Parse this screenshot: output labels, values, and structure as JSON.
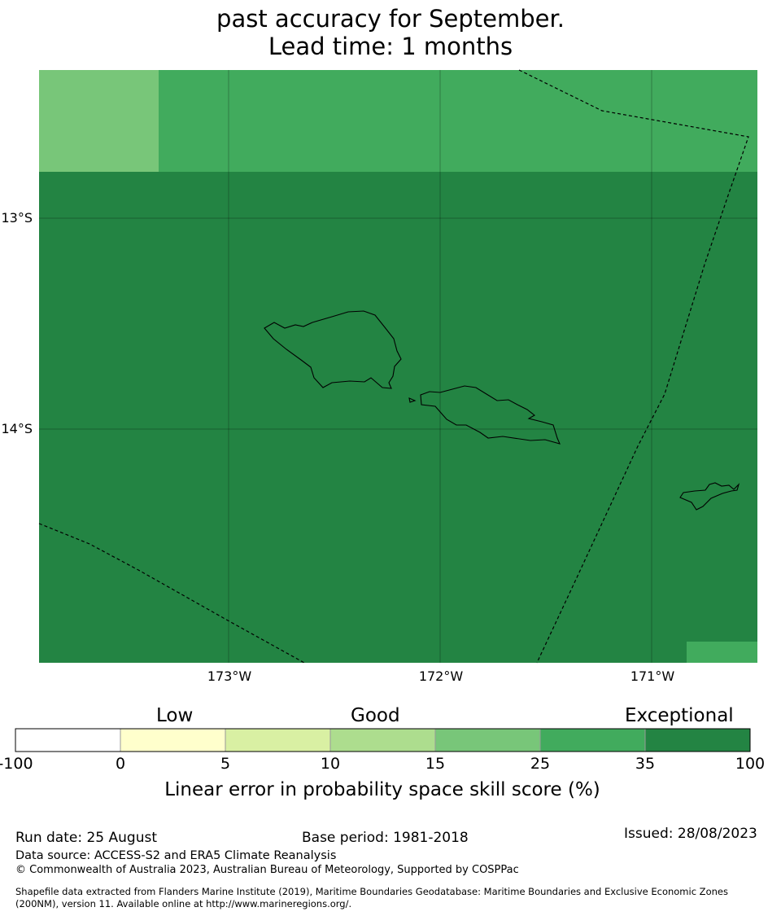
{
  "title": {
    "lines": [
      "past accuracy for September.",
      "Lead time: 1 months"
    ]
  },
  "map": {
    "latitude_labels": [
      "13°S",
      "14°S"
    ],
    "longitude_labels": [
      "173°W",
      "172°W",
      "171°W"
    ],
    "skill_colors": {
      "25-35": "#41ab5d",
      "35-100": "#238443",
      "15-25": "#78c679"
    }
  },
  "colorbar": {
    "categories": [
      "Low",
      "Good",
      "Exceptional"
    ],
    "ticks": [
      "-100",
      "0",
      "5",
      "10",
      "15",
      "25",
      "35",
      "100"
    ],
    "colors": [
      "#ffffff",
      "#ffffcc",
      "#d9f0a3",
      "#addd8e",
      "#78c679",
      "#41ab5d",
      "#238443"
    ],
    "label": "Linear error in probability space skill score (%)"
  },
  "footer": {
    "run_date": "Run date: 25 August",
    "base_period": "Base period: 1981-2018",
    "issued": "Issued: 28/08/2023",
    "data_source": "Data source: ACCESS-S2 and ERA5 Climate Reanalysis",
    "copyright": "© Commonwealth of Australia 2023, Australian Bureau of Meteorology, Supported by COSPPac",
    "shapefile_line1": "Shapefile data extracted from Flanders Marine Institute (2019), Maritime Boundaries Geodatabase: Maritime Boundaries and Exclusive Economic Zones",
    "shapefile_line2": "(200NM), version 11. Available online at http://www.marineregions.org/."
  }
}
